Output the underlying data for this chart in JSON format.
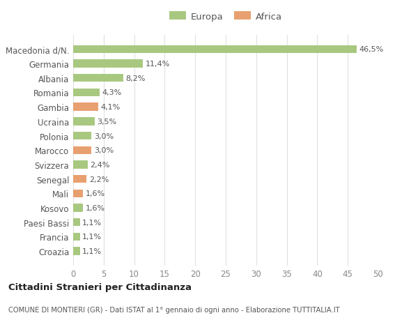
{
  "categories": [
    "Croazia",
    "Francia",
    "Paesi Bassi",
    "Kosovo",
    "Mali",
    "Senegal",
    "Svizzera",
    "Marocco",
    "Polonia",
    "Ucraina",
    "Gambia",
    "Romania",
    "Albania",
    "Germania",
    "Macedonia d/N."
  ],
  "values": [
    1.1,
    1.1,
    1.1,
    1.6,
    1.6,
    2.2,
    2.4,
    3.0,
    3.0,
    3.5,
    4.1,
    4.3,
    8.2,
    11.4,
    46.5
  ],
  "labels": [
    "1,1%",
    "1,1%",
    "1,1%",
    "1,6%",
    "1,6%",
    "2,2%",
    "2,4%",
    "3,0%",
    "3,0%",
    "3,5%",
    "4,1%",
    "4,3%",
    "8,2%",
    "11,4%",
    "46,5%"
  ],
  "colors": [
    "#a8c880",
    "#a8c880",
    "#a8c880",
    "#a8c880",
    "#e8a070",
    "#e8a070",
    "#a8c880",
    "#e8a070",
    "#a8c880",
    "#a8c880",
    "#e8a070",
    "#a8c880",
    "#a8c880",
    "#a8c880",
    "#a8c880"
  ],
  "europa_color": "#a8c880",
  "africa_color": "#e8a070",
  "legend_europa": "Europa",
  "legend_africa": "Africa",
  "title": "Cittadini Stranieri per Cittadinanza",
  "subtitle": "COMUNE DI MONTIERI (GR) - Dati ISTAT al 1° gennaio di ogni anno - Elaborazione TUTTITALIA.IT",
  "xlim": [
    0,
    50
  ],
  "xticks": [
    0,
    5,
    10,
    15,
    20,
    25,
    30,
    35,
    40,
    45,
    50
  ],
  "background_color": "#ffffff",
  "grid_color": "#e0e0e0",
  "bar_height": 0.55
}
